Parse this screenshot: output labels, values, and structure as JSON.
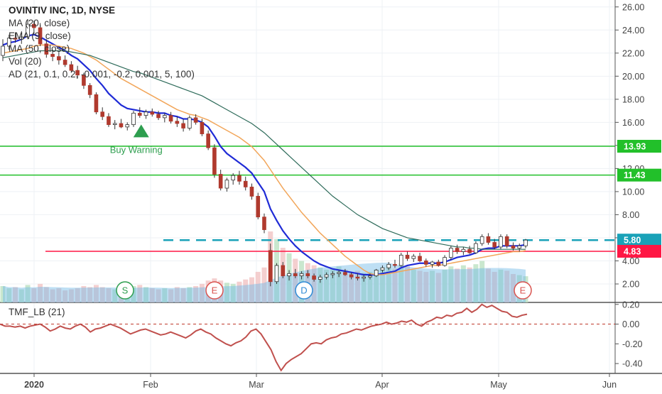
{
  "chart_data": [
    {
      "type": "candlestick",
      "title": "OVINTIV INC, 1D, NYSE",
      "indicator_legend": [
        "MA (20, close)",
        "EMA (9, close)",
        "MA (50, close)",
        "Vol (20)",
        "AD (21, 0.1, 0.2, -0.001, -0.2, 0.001, 5, 100)"
      ],
      "ylim": [
        0.4,
        26.6
      ],
      "y_ticks": [
        "26.00",
        "24.00",
        "22.00",
        "20.00",
        "18.00",
        "16.00",
        "14.00",
        "12.00",
        "10.00",
        "8.00",
        "6.00",
        "4.00",
        "2.00"
      ],
      "x_ticks": [
        "2020",
        "Feb",
        "Mar",
        "Apr",
        "May",
        "Jun"
      ],
      "candles": [
        [
          21.8,
          23.2,
          21.3,
          22.6
        ],
        [
          22.6,
          23.6,
          22.3,
          23.3
        ],
        [
          23.3,
          23.8,
          22.9,
          23.2
        ],
        [
          23.2,
          23.9,
          22.8,
          23.4
        ],
        [
          23.4,
          24.9,
          23.2,
          24.5
        ],
        [
          24.5,
          24.8,
          23.6,
          24.2
        ],
        [
          24.2,
          24.6,
          22.6,
          22.8
        ],
        [
          22.8,
          23.2,
          21.6,
          21.9
        ],
        [
          21.9,
          22.3,
          21.3,
          21.7
        ],
        [
          21.7,
          22.1,
          21.0,
          21.4
        ],
        [
          21.4,
          21.8,
          20.8,
          21.0
        ],
        [
          21.0,
          21.3,
          20.3,
          20.5
        ],
        [
          20.5,
          20.9,
          19.8,
          20.1
        ],
        [
          20.1,
          20.3,
          18.9,
          19.2
        ],
        [
          19.2,
          19.4,
          18.1,
          18.4
        ],
        [
          18.4,
          18.6,
          16.7,
          16.9
        ],
        [
          16.9,
          17.3,
          16.2,
          16.5
        ],
        [
          16.5,
          16.8,
          15.6,
          15.8
        ],
        [
          15.8,
          16.2,
          15.4,
          15.9
        ],
        [
          15.9,
          16.3,
          15.5,
          15.6
        ],
        [
          15.6,
          16.0,
          15.3,
          15.8
        ],
        [
          15.8,
          17.0,
          15.6,
          16.8
        ],
        [
          16.8,
          17.3,
          16.4,
          16.6
        ],
        [
          16.6,
          17.1,
          16.3,
          16.9
        ],
        [
          16.9,
          17.2,
          16.5,
          16.7
        ],
        [
          16.7,
          17.0,
          16.2,
          16.4
        ],
        [
          16.4,
          16.8,
          16.0,
          16.6
        ],
        [
          16.6,
          16.9,
          15.9,
          16.1
        ],
        [
          16.1,
          16.5,
          15.6,
          15.9
        ],
        [
          15.9,
          16.3,
          15.2,
          15.5
        ],
        [
          15.5,
          16.6,
          15.3,
          16.4
        ],
        [
          16.4,
          16.7,
          15.8,
          16.0
        ],
        [
          16.0,
          16.3,
          14.8,
          15.0
        ],
        [
          15.0,
          15.3,
          13.6,
          13.8
        ],
        [
          13.8,
          14.1,
          11.2,
          11.5
        ],
        [
          11.5,
          11.9,
          10.1,
          10.3
        ],
        [
          10.3,
          11.2,
          10.0,
          11.0
        ],
        [
          11.0,
          11.6,
          10.6,
          11.4
        ],
        [
          11.4,
          11.8,
          10.6,
          10.9
        ],
        [
          10.9,
          11.3,
          10.1,
          10.4
        ],
        [
          10.4,
          10.7,
          9.3,
          9.6
        ],
        [
          9.6,
          9.9,
          7.6,
          7.8
        ],
        [
          7.8,
          8.1,
          6.4,
          6.7
        ],
        [
          4.9,
          5.5,
          1.8,
          2.2
        ],
        [
          2.2,
          3.8,
          2.0,
          3.6
        ],
        [
          3.6,
          3.9,
          2.5,
          2.7
        ],
        [
          2.7,
          3.2,
          2.3,
          2.9
        ],
        [
          2.9,
          3.3,
          2.5,
          2.7
        ],
        [
          2.7,
          3.1,
          2.4,
          2.9
        ],
        [
          2.9,
          3.2,
          2.5,
          2.7
        ],
        [
          2.7,
          2.9,
          2.2,
          2.4
        ],
        [
          2.4,
          2.8,
          2.1,
          2.6
        ],
        [
          2.6,
          3.0,
          2.4,
          2.8
        ],
        [
          2.8,
          3.1,
          2.5,
          2.9
        ],
        [
          2.9,
          3.2,
          2.6,
          3.0
        ],
        [
          3.0,
          3.3,
          2.7,
          2.8
        ],
        [
          2.8,
          3.0,
          2.4,
          2.6
        ],
        [
          2.6,
          2.9,
          2.3,
          2.5
        ],
        [
          2.5,
          2.8,
          2.2,
          2.6
        ],
        [
          2.6,
          2.9,
          2.4,
          2.7
        ],
        [
          2.7,
          3.3,
          2.6,
          3.2
        ],
        [
          3.2,
          3.6,
          3.0,
          3.4
        ],
        [
          3.4,
          3.9,
          3.2,
          3.7
        ],
        [
          3.7,
          4.1,
          3.4,
          3.6
        ],
        [
          3.6,
          4.7,
          3.5,
          4.5
        ],
        [
          4.5,
          4.8,
          4.0,
          4.2
        ],
        [
          4.2,
          4.6,
          3.9,
          4.4
        ],
        [
          4.4,
          4.7,
          3.9,
          4.0
        ],
        [
          4.0,
          4.2,
          3.5,
          3.7
        ],
        [
          3.7,
          4.0,
          3.4,
          3.9
        ],
        [
          3.9,
          4.1,
          3.5,
          3.6
        ],
        [
          3.6,
          4.5,
          3.5,
          4.3
        ],
        [
          4.3,
          5.3,
          4.1,
          5.1
        ],
        [
          5.1,
          5.4,
          4.6,
          4.8
        ],
        [
          4.8,
          5.2,
          4.5,
          5.0
        ],
        [
          5.0,
          5.3,
          4.6,
          4.7
        ],
        [
          4.7,
          5.7,
          4.6,
          5.5
        ],
        [
          5.5,
          6.3,
          5.3,
          6.1
        ],
        [
          6.1,
          6.4,
          5.4,
          5.6
        ],
        [
          5.6,
          5.9,
          5.0,
          5.2
        ],
        [
          5.2,
          6.3,
          5.0,
          6.1
        ],
        [
          6.1,
          6.3,
          5.1,
          5.3
        ],
        [
          5.3,
          5.6,
          4.9,
          5.1
        ],
        [
          5.1,
          5.5,
          4.8,
          5.3
        ],
        [
          5.3,
          5.9,
          5.1,
          5.8
        ]
      ],
      "series": [
        {
          "name": "EMA (9, close)",
          "values": [
            22.7,
            22.9,
            23.0,
            23.2,
            23.5,
            23.6,
            23.4,
            23.1,
            22.8,
            22.5,
            22.2,
            21.8,
            21.5,
            21.0,
            20.5,
            19.8,
            19.2,
            18.5,
            18.0,
            17.5,
            17.2,
            17.1,
            17.0,
            16.9,
            16.9,
            16.8,
            16.8,
            16.6,
            16.5,
            16.3,
            16.3,
            16.2,
            16.0,
            15.6,
            14.8,
            13.9,
            13.3,
            12.9,
            12.5,
            12.1,
            11.6,
            10.8,
            10.0,
            8.5,
            7.5,
            6.6,
            5.9,
            5.3,
            4.8,
            4.4,
            4.0,
            3.7,
            3.5,
            3.3,
            3.2,
            3.1,
            3.0,
            2.9,
            2.8,
            2.8,
            2.8,
            2.9,
            3.0,
            3.1,
            3.4,
            3.6,
            3.7,
            3.8,
            3.8,
            3.8,
            3.8,
            3.9,
            4.1,
            4.3,
            4.4,
            4.5,
            4.7,
            5.0,
            5.1,
            5.1,
            5.3,
            5.3,
            5.3,
            5.3,
            5.4
          ]
        },
        {
          "name": "MA (20, close)",
          "values": [
            22.0,
            22.1,
            22.2,
            22.3,
            22.4,
            22.6,
            22.7,
            22.7,
            22.7,
            22.6,
            22.5,
            22.4,
            22.2,
            22.0,
            21.7,
            21.4,
            21.0,
            20.6,
            20.2,
            19.8,
            19.5,
            19.2,
            18.9,
            18.6,
            18.3,
            18.0,
            17.7,
            17.4,
            17.1,
            16.9,
            16.7,
            16.6,
            16.4,
            16.2,
            15.9,
            15.6,
            15.3,
            15.0,
            14.7,
            14.3,
            13.9,
            13.3,
            12.7,
            11.9,
            11.1,
            10.3,
            9.6,
            8.9,
            8.2,
            7.6,
            7.0,
            6.4,
            5.9,
            5.4,
            4.9,
            4.4,
            4.0,
            3.6,
            3.2,
            2.9,
            2.8,
            2.8,
            2.9,
            3.0,
            3.1,
            3.2,
            3.3,
            3.4,
            3.5,
            3.6,
            3.6,
            3.7,
            3.8,
            3.9,
            4.0,
            4.1,
            4.2,
            4.3,
            4.4,
            4.5,
            4.6,
            4.7,
            4.8,
            4.8,
            4.9
          ]
        },
        {
          "name": "MA (50, close)",
          "values": [
            21.6,
            21.7,
            21.8,
            21.9,
            22.0,
            22.1,
            22.2,
            22.2,
            22.2,
            22.2,
            22.2,
            22.1,
            22.0,
            21.9,
            21.8,
            21.6,
            21.4,
            21.2,
            21.0,
            20.8,
            20.6,
            20.4,
            20.3,
            20.1,
            19.9,
            19.7,
            19.5,
            19.3,
            19.1,
            18.9,
            18.7,
            18.5,
            18.3,
            18.0,
            17.7,
            17.4,
            17.1,
            16.8,
            16.5,
            16.2,
            15.9,
            15.5,
            15.1,
            14.6,
            14.1,
            13.6,
            13.1,
            12.6,
            12.1,
            11.6,
            11.1,
            10.6,
            10.1,
            9.6,
            9.2,
            8.8,
            8.4,
            8.0,
            7.7,
            7.4,
            7.1,
            6.8,
            6.6,
            6.4,
            6.2,
            6.0,
            5.9,
            5.8,
            5.7,
            5.6,
            5.5,
            5.4,
            5.3,
            5.2,
            5.2,
            5.1,
            5.1,
            5.0,
            5.0,
            5.0,
            5.0,
            5.0,
            5.0,
            5.0,
            5.0
          ]
        }
      ],
      "volume": [
        1.5,
        1.3,
        1.4,
        1.2,
        1.6,
        1.3,
        1.7,
        1.4,
        1.2,
        1.3,
        1.1,
        1.2,
        1.3,
        1.5,
        1.4,
        1.6,
        1.4,
        1.3,
        1.2,
        1.1,
        1.3,
        1.5,
        1.6,
        1.4,
        1.3,
        1.2,
        1.3,
        1.2,
        1.4,
        1.3,
        1.4,
        1.5,
        1.7,
        2.0,
        2.2,
        2.0,
        1.8,
        1.7,
        1.9,
        2.1,
        2.3,
        2.8,
        3.2,
        6.5,
        5.8,
        5.0,
        4.5,
        4.0,
        3.8,
        3.6,
        3.4,
        3.2,
        3.0,
        3.1,
        3.3,
        3.0,
        2.8,
        2.9,
        2.7,
        2.8,
        3.0,
        3.2,
        3.4,
        3.1,
        3.6,
        3.3,
        3.0,
        2.9,
        2.8,
        2.9,
        2.7,
        3.0,
        3.3,
        3.1,
        3.4,
        3.2,
        3.5,
        3.8,
        3.1,
        2.8,
        3.0,
        2.9,
        2.6,
        2.5,
        2.4
      ],
      "horizontal_levels": [
        {
          "value": 13.93,
          "label": "13.93",
          "color": "#22c02a"
        },
        {
          "value": 11.43,
          "label": "11.43",
          "color": "#22c02a"
        },
        {
          "value": 5.8,
          "label": "5.80",
          "color": "#1aa2b8"
        },
        {
          "value": 4.83,
          "label": "4.83",
          "color": "#ff1744"
        }
      ],
      "annotations": [
        {
          "text": "Buy Warning",
          "color": "#2e9e4f"
        }
      ],
      "event_markers": [
        "S",
        "E",
        "D",
        "E"
      ]
    },
    {
      "type": "line",
      "title": "TMF_LB (21)",
      "ylim": [
        -0.5,
        0.22
      ],
      "y_ticks": [
        "0.20",
        "0.00",
        "-0.20",
        "-0.40"
      ],
      "values": [
        0.0,
        -0.02,
        -0.02,
        -0.03,
        -0.02,
        -0.04,
        -0.02,
        -0.01,
        0.0,
        -0.03,
        -0.07,
        -0.05,
        -0.02,
        -0.04,
        -0.05,
        -0.02,
        0.0,
        -0.03,
        -0.08,
        -0.05,
        -0.04,
        -0.02,
        0.0,
        -0.02,
        -0.04,
        -0.07,
        -0.1,
        -0.08,
        -0.06,
        -0.05,
        -0.07,
        -0.09,
        -0.11,
        -0.1,
        -0.08,
        -0.1,
        -0.12,
        -0.14,
        -0.11,
        -0.07,
        -0.05,
        -0.08,
        -0.1,
        -0.14,
        -0.17,
        -0.2,
        -0.22,
        -0.19,
        -0.17,
        -0.13,
        -0.07,
        -0.05,
        -0.1,
        -0.18,
        -0.26,
        -0.38,
        -0.47,
        -0.4,
        -0.36,
        -0.33,
        -0.3,
        -0.25,
        -0.2,
        -0.19,
        -0.2,
        -0.16,
        -0.14,
        -0.13,
        -0.1,
        -0.09,
        -0.07,
        -0.05,
        -0.06,
        -0.04,
        -0.02,
        -0.01,
        0.0,
        0.02,
        0.0,
        0.01,
        0.03,
        0.02,
        0.04,
        0.0,
        -0.02,
        0.02,
        0.04,
        0.07,
        0.06,
        0.09,
        0.08,
        0.11,
        0.12,
        0.16,
        0.12,
        0.15,
        0.2,
        0.17,
        0.19,
        0.16,
        0.13,
        0.12,
        0.08,
        0.07,
        0.09,
        0.1
      ]
    }
  ]
}
